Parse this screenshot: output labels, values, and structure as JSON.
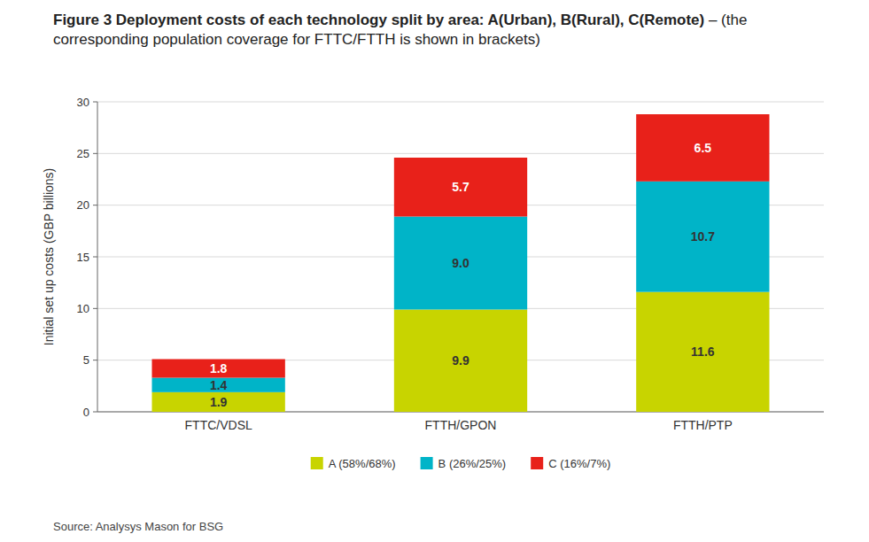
{
  "chart_data": {
    "type": "bar",
    "stacked": true,
    "title": "Figure 3 Deployment costs of each technology split by area: A(Urban), B(Rural), C(Remote)",
    "subtitle": "– (the corresponding population coverage for FTTC/FTTH is shown in brackets)",
    "source": "Source: Analysys Mason for BSG",
    "y_label": "Initial set up costs (GBP billions)",
    "categories": [
      "FTTC/VDSL",
      "FTTH/GPON",
      "FTTH/PTP"
    ],
    "series": [
      {
        "name": "A (58%/68%)",
        "color": "#c8d400",
        "values": [
          1.9,
          9.9,
          11.6
        ],
        "value_labels": [
          "1.9",
          "9.9",
          "11.6"
        ]
      },
      {
        "name": "B (26%/25%)",
        "color": "#00b4c8",
        "values": [
          1.4,
          9.0,
          10.7
        ],
        "value_labels": [
          "1.4",
          "9.0",
          "10.7"
        ]
      },
      {
        "name": "C (16%/7%)",
        "color": "#e8211a",
        "values": [
          1.8,
          5.7,
          6.5
        ],
        "value_labels": [
          "1.8",
          "5.7",
          "6.5"
        ]
      }
    ],
    "ylim": [
      0,
      30
    ],
    "yticks": [
      0,
      5,
      10,
      15,
      20,
      25,
      30
    ],
    "grid": true,
    "legend": "bottom",
    "data_labels": true
  }
}
